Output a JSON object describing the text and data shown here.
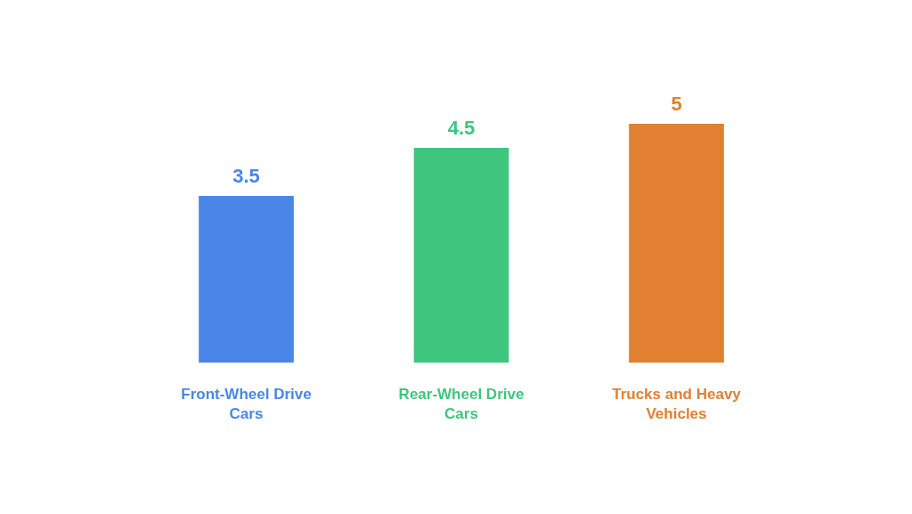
{
  "chart_data": {
    "type": "bar",
    "categories": [
      "Front-Wheel Drive Cars",
      "Rear-Wheel Drive Cars",
      "Trucks and Heavy Vehicles"
    ],
    "values": [
      3.5,
      4.5,
      5
    ],
    "colors": [
      "#4a86e8",
      "#3ec67f",
      "#e08030"
    ],
    "data_labels": true
  }
}
